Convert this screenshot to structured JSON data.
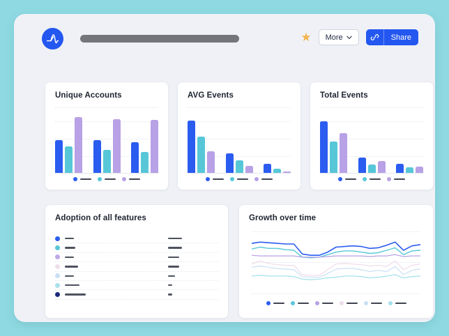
{
  "header": {
    "logo_name": "amplitude-logo",
    "more_label": "More",
    "share_label": "Share"
  },
  "colors": {
    "background": "#8fdae2",
    "panel": "#eff1f6",
    "accent_blue": "#2457f0",
    "star_gold": "#f2b44c",
    "bar_blue": "#2b5cf0",
    "bar_teal": "#57c7d8",
    "bar_purple": "#b8a1e6",
    "dash_dark": "#3f4450"
  },
  "bar_series_colors": [
    "#2b5cf0",
    "#57c7d8",
    "#b8a1e6"
  ],
  "cards": {
    "unique_accounts": {
      "title": "Unique Accounts",
      "type": "bar",
      "groups": [
        [
          50,
          40,
          85
        ],
        [
          50,
          35,
          82
        ],
        [
          47,
          32,
          81
        ]
      ]
    },
    "avg_events": {
      "title": "AVG Events",
      "type": "bar",
      "groups": [
        [
          80,
          55,
          33
        ],
        [
          30,
          19,
          11
        ],
        [
          14,
          6,
          2
        ]
      ]
    },
    "total_events": {
      "title": "Total Events",
      "type": "bar",
      "groups": [
        [
          79,
          48,
          61
        ],
        [
          23,
          13,
          18
        ],
        [
          14,
          8,
          10
        ]
      ]
    },
    "adoption": {
      "title": "Adoption of all features",
      "rows": [
        {
          "dot": "#2b5cf0",
          "label_w": 13,
          "value_w": 20
        },
        {
          "dot": "#57c7d8",
          "label_w": 15,
          "value_w": 20
        },
        {
          "dot": "#c0a7e8",
          "label_w": 13,
          "value_w": 16
        },
        {
          "dot": "#efdfeb",
          "label_w": 19,
          "value_w": 16
        },
        {
          "dot": "#cadff5",
          "label_w": 13,
          "value_w": 10
        },
        {
          "dot": "#a9e1ea",
          "label_w": 21,
          "value_w": 6
        },
        {
          "dot": "#1b2a7a",
          "label_w": 30,
          "value_w": 6
        }
      ]
    },
    "growth": {
      "title": "Growth over time",
      "type": "line",
      "series": [
        {
          "color": "#2b5cf0",
          "width": 1.6,
          "values": [
            19,
            17,
            18,
            19,
            20,
            20,
            36,
            38,
            38,
            33,
            25,
            24,
            23,
            24,
            27,
            26,
            22,
            17,
            30,
            23,
            21
          ]
        },
        {
          "color": "#57c7d8",
          "width": 1.4,
          "values": [
            28,
            25,
            27,
            27,
            29,
            30,
            41,
            42,
            41,
            37,
            33,
            31,
            31,
            33,
            35,
            34,
            30,
            26,
            37,
            31,
            30
          ]
        },
        {
          "color": "#b8a1e6",
          "width": 1.2,
          "values": [
            38,
            39,
            39,
            39,
            39,
            39,
            41,
            41,
            41,
            40,
            39,
            39,
            39,
            39,
            40,
            39,
            39,
            37,
            40,
            39,
            39
          ]
        },
        {
          "color": "#eedcea",
          "width": 1.2,
          "values": [
            52,
            47,
            51,
            53,
            54,
            54,
            69,
            70,
            70,
            61,
            52,
            51,
            52,
            53,
            55,
            54,
            56,
            47,
            61,
            54,
            52
          ]
        },
        {
          "color": "#cadff5",
          "width": 1.2,
          "values": [
            57,
            55,
            57,
            59,
            60,
            61,
            72,
            73,
            73,
            67,
            60,
            59,
            59,
            61,
            64,
            62,
            64,
            56,
            69,
            62,
            60
          ]
        },
        {
          "color": "#a5e2ec",
          "width": 1.3,
          "values": [
            71,
            70,
            71,
            71,
            71,
            72,
            76,
            77,
            76,
            74,
            73,
            71,
            71,
            72,
            74,
            73,
            71,
            69,
            74,
            72,
            71
          ]
        }
      ],
      "legend_colors": [
        "#2b5cf0",
        "#57c7d8",
        "#b8a1e6",
        "#eedcea",
        "#cadff5",
        "#a5e2ec"
      ]
    }
  }
}
